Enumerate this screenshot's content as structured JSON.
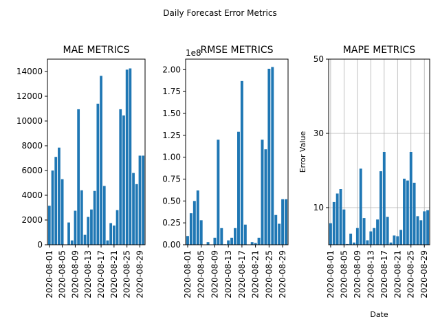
{
  "figure": {
    "title": "Daily Forecast Error Metrics",
    "bar_color": "#1f77b4",
    "grid_color": "#b0b0b0"
  },
  "chart_data": [
    {
      "type": "bar",
      "title": "MAE METRICS",
      "xlabel": "",
      "ylabel": "",
      "exponent_label": "",
      "scale_factor": 1,
      "ylim": [
        0,
        15000
      ],
      "yticks": [
        0,
        2000,
        4000,
        6000,
        8000,
        10000,
        12000,
        14000
      ],
      "ytick_labels": [
        "0",
        "2000",
        "4000",
        "6000",
        "8000",
        "10000",
        "12000",
        "14000"
      ],
      "grid": false,
      "categories": [
        "2020-08-01",
        "2020-08-02",
        "2020-08-03",
        "2020-08-04",
        "2020-08-05",
        "2020-08-06",
        "2020-08-07",
        "2020-08-08",
        "2020-08-09",
        "2020-08-10",
        "2020-08-11",
        "2020-08-12",
        "2020-08-13",
        "2020-08-14",
        "2020-08-15",
        "2020-08-16",
        "2020-08-17",
        "2020-08-18",
        "2020-08-19",
        "2020-08-20",
        "2020-08-21",
        "2020-08-22",
        "2020-08-23",
        "2020-08-24",
        "2020-08-25",
        "2020-08-26",
        "2020-08-27",
        "2020-08-28",
        "2020-08-29",
        "2020-08-30"
      ],
      "xtick_labels": [
        "2020-08-01",
        "2020-08-05",
        "2020-08-09",
        "2020-08-13",
        "2020-08-17",
        "2020-08-21",
        "2020-08-25",
        "2020-08-29"
      ],
      "values": [
        3150,
        6000,
        7100,
        7850,
        5300,
        0,
        1800,
        350,
        2750,
        10950,
        4400,
        800,
        2250,
        2850,
        4350,
        11400,
        13650,
        4750,
        350,
        1750,
        1550,
        2800,
        10950,
        10450,
        14150,
        14250,
        5800,
        4900,
        7200,
        7200
      ]
    },
    {
      "type": "bar",
      "title": "RMSE METRICS",
      "xlabel": "",
      "ylabel": "",
      "exponent_label": "1e8",
      "scale_factor": 100000000,
      "ylim": [
        0,
        2.12
      ],
      "yticks": [
        0,
        0.25,
        0.5,
        0.75,
        1.0,
        1.25,
        1.5,
        1.75,
        2.0
      ],
      "ytick_labels": [
        "0.00",
        "0.25",
        "0.50",
        "0.75",
        "1.00",
        "1.25",
        "1.50",
        "1.75",
        "2.00"
      ],
      "grid": false,
      "categories": [
        "2020-08-01",
        "2020-08-02",
        "2020-08-03",
        "2020-08-04",
        "2020-08-05",
        "2020-08-06",
        "2020-08-07",
        "2020-08-08",
        "2020-08-09",
        "2020-08-10",
        "2020-08-11",
        "2020-08-12",
        "2020-08-13",
        "2020-08-14",
        "2020-08-15",
        "2020-08-16",
        "2020-08-17",
        "2020-08-18",
        "2020-08-19",
        "2020-08-20",
        "2020-08-21",
        "2020-08-22",
        "2020-08-23",
        "2020-08-24",
        "2020-08-25",
        "2020-08-26",
        "2020-08-27",
        "2020-08-28",
        "2020-08-29",
        "2020-08-30"
      ],
      "xtick_labels": [
        "2020-08-01",
        "2020-08-05",
        "2020-08-09",
        "2020-08-13",
        "2020-08-17",
        "2020-08-21",
        "2020-08-25",
        "2020-08-29"
      ],
      "values": [
        0.1,
        0.36,
        0.5,
        0.62,
        0.28,
        0,
        0.03,
        0.001,
        0.08,
        1.2,
        0.19,
        0.006,
        0.05,
        0.08,
        0.19,
        1.29,
        1.87,
        0.23,
        0.001,
        0.03,
        0.02,
        0.08,
        1.2,
        1.09,
        2.01,
        2.03,
        0.34,
        0.24,
        0.52,
        0.52
      ]
    },
    {
      "type": "bar",
      "title": "MAPE METRICS",
      "xlabel": "Date",
      "ylabel": "Error Value",
      "exponent_label": "",
      "scale_factor": 1,
      "ylim": [
        0,
        50
      ],
      "yticks": [
        10,
        30,
        50
      ],
      "ytick_labels": [
        "10",
        "30",
        "50"
      ],
      "grid": true,
      "categories": [
        "2020-08-01",
        "2020-08-02",
        "2020-08-03",
        "2020-08-04",
        "2020-08-05",
        "2020-08-06",
        "2020-08-07",
        "2020-08-08",
        "2020-08-09",
        "2020-08-10",
        "2020-08-11",
        "2020-08-12",
        "2020-08-13",
        "2020-08-14",
        "2020-08-15",
        "2020-08-16",
        "2020-08-17",
        "2020-08-18",
        "2020-08-19",
        "2020-08-20",
        "2020-08-21",
        "2020-08-22",
        "2020-08-23",
        "2020-08-24",
        "2020-08-25",
        "2020-08-26",
        "2020-08-27",
        "2020-08-28",
        "2020-08-29",
        "2020-08-30"
      ],
      "xtick_labels": [
        "2020-08-01",
        "2020-08-05",
        "2020-08-09",
        "2020-08-13",
        "2020-08-17",
        "2020-08-21",
        "2020-08-25",
        "2020-08-29"
      ],
      "values": [
        5.8,
        11.5,
        13.8,
        15.0,
        9.5,
        0.2,
        3.0,
        0.6,
        4.5,
        20.5,
        7.2,
        1.2,
        3.6,
        4.5,
        6.8,
        19.8,
        25.0,
        7.5,
        0.6,
        2.5,
        2.3,
        4.0,
        17.8,
        17.3,
        25.0,
        16.7,
        7.7,
        6.6,
        9.0,
        9.3
      ]
    }
  ]
}
